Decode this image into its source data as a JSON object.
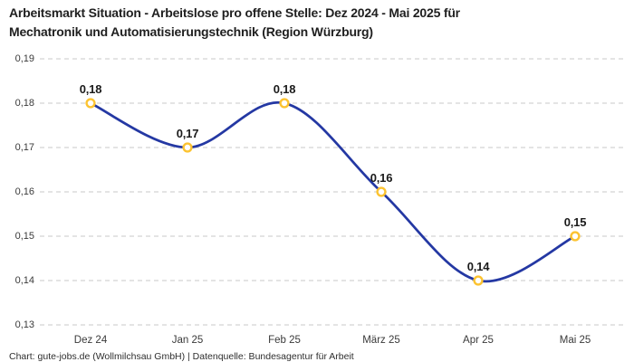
{
  "title": {
    "line1": "Arbeitsmarkt Situation - Arbeitslose pro offene Stelle: Dez 2024 - Mai 2025 für",
    "line2": "Mechatronik und Automatisierungstechnik (Region Würzburg)"
  },
  "footer": "Chart: gute-jobs.de (Wollmilchsau GmbH) | Datenquelle: Bundesagentur für Arbeit",
  "chart_data": {
    "type": "line",
    "title": "Arbeitsmarkt Situation - Arbeitslose pro offene Stelle: Dez 2024 - Mai 2025 für Mechatronik und Automatisierungstechnik (Region Würzburg)",
    "categories": [
      "Dez 24",
      "Jan 25",
      "Feb 25",
      "März 25",
      "Apr 25",
      "Mai 25"
    ],
    "values": [
      0.18,
      0.17,
      0.18,
      0.16,
      0.14,
      0.15
    ],
    "value_labels": [
      "0,18",
      "0,17",
      "0,18",
      "0,16",
      "0,14",
      "0,15"
    ],
    "y_ticks": [
      0.19,
      0.18,
      0.17,
      0.16,
      0.15,
      0.14,
      0.13
    ],
    "y_tick_labels": [
      "0,19",
      "0,18",
      "0,17",
      "0,16",
      "0,15",
      "0,14",
      "0,13"
    ],
    "ylim": [
      0.13,
      0.19
    ],
    "xlabel": "",
    "ylabel": "",
    "grid": "horizontal-dashed",
    "legend": "none",
    "line_smoothing": "spline",
    "colors": {
      "line": "#2438a3",
      "marker_stroke": "#fcc331",
      "marker_fill": "#ffffff",
      "grid": "#c9c9c9",
      "title_text": "#1f1f1f",
      "tick_text": "#3a3a3a",
      "data_label_text": "#1a1a1a",
      "background": "#ffffff"
    }
  }
}
